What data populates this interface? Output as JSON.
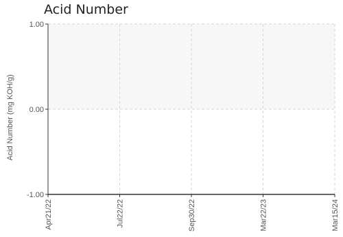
{
  "chart_data": {
    "type": "line",
    "title": "Acid Number",
    "xlabel": "",
    "ylabel": "Acid Number (mg KOH/g)",
    "x_ticks": [
      "Apr21/22",
      "Jul22/22",
      "Sep30/22",
      "Mar22/23",
      "Mar15/24"
    ],
    "y_ticks": [
      "1.00",
      "0.00",
      "-1.00"
    ],
    "ylim": [
      -1,
      1
    ],
    "series": [],
    "shaded_band": {
      "from": 0,
      "to": 1,
      "color": "#f7f7f7"
    },
    "grid": true,
    "legend": "none"
  },
  "colors": {
    "grid": "#d6d6d6",
    "axis": "#333333",
    "band": "#f7f7f7"
  }
}
